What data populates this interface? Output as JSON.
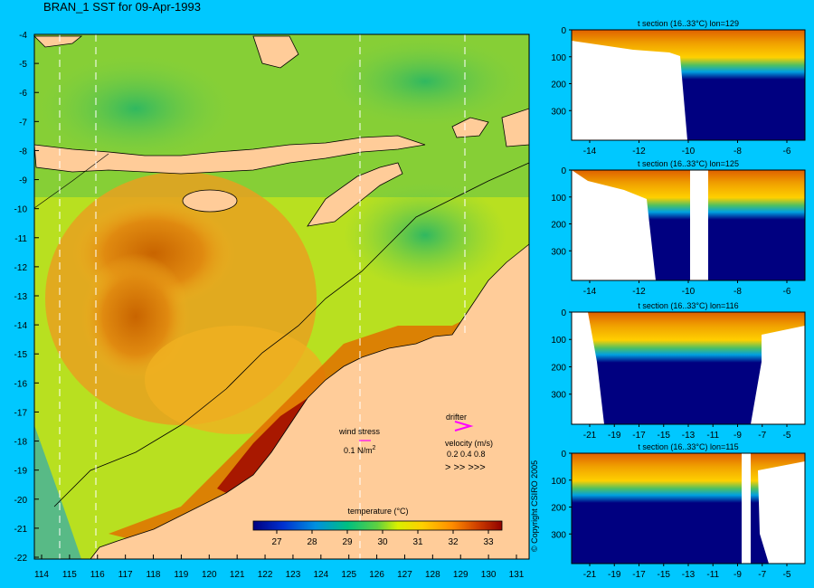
{
  "map": {
    "title": "BRAN_1 SST for 09-Apr-1993",
    "lat_ticks": [
      "-4",
      "-5",
      "-6",
      "-7",
      "-8",
      "-9",
      "-10",
      "-11",
      "-12",
      "-13",
      "-14",
      "-15",
      "-16",
      "-17",
      "-18",
      "-19",
      "-20",
      "-21",
      "-22"
    ],
    "lon_ticks": [
      "114",
      "115",
      "116",
      "117",
      "118",
      "119",
      "120",
      "121",
      "122",
      "123",
      "124",
      "125",
      "126",
      "127",
      "128",
      "129",
      "130",
      "131"
    ],
    "wind_label": "wind stress",
    "wind_value": "0.1 N/m",
    "wind_unit_sup": "2",
    "drifter_label": "drifter",
    "velocity_label": "velocity (m/s)",
    "velocity_values": "0.2 0.4 0.8",
    "colorbar_label": "temperature (°C)",
    "colorbar_ticks": [
      "27",
      "28",
      "29",
      "30",
      "31",
      "32",
      "33"
    ],
    "colors": {
      "land": "#ffcc99",
      "background": "#00c8ff",
      "drifter": "#ff00ff"
    }
  },
  "sections": [
    {
      "title": "t section (16..33°C) lon=129",
      "x_ticks": [
        "-14",
        "-12",
        "-10",
        "-8",
        "-6"
      ],
      "y_ticks": [
        "0",
        "100",
        "200",
        "300"
      ]
    },
    {
      "title": "t section (16..33°C) lon=125",
      "x_ticks": [
        "-14",
        "-12",
        "-10",
        "-8",
        "-6"
      ],
      "y_ticks": [
        "0",
        "100",
        "200",
        "300"
      ]
    },
    {
      "title": "t section (16..33°C) lon=116",
      "x_ticks": [
        "-21",
        "-19",
        "-17",
        "-15",
        "-13",
        "-11",
        "-9",
        "-7",
        "-5"
      ],
      "y_ticks": [
        "0",
        "100",
        "200",
        "300"
      ]
    },
    {
      "title": "t section (16..33°C) lon=115",
      "x_ticks": [
        "-21",
        "-19",
        "-17",
        "-15",
        "-13",
        "-11",
        "-9",
        "-7",
        "-5"
      ],
      "y_ticks": [
        "0",
        "100",
        "200",
        "300"
      ]
    }
  ],
  "copyright": "© Copyright CSIRO 2005"
}
